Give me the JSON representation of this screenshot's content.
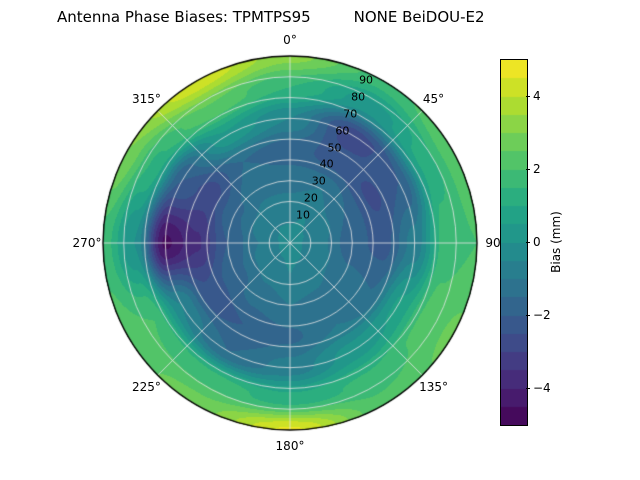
{
  "chart_data": {
    "type": "heatmap",
    "projection": "polar",
    "title": "Antenna Phase Biases: TPMTPS95         NONE BeiDOU-E2",
    "grid": true,
    "angular_ticks": [
      {
        "angle_deg": 0,
        "label": "0°"
      },
      {
        "angle_deg": 45,
        "label": "45°"
      },
      {
        "angle_deg": 90,
        "label": "90"
      },
      {
        "angle_deg": 135,
        "label": "135°"
      },
      {
        "angle_deg": 180,
        "label": "180°"
      },
      {
        "angle_deg": 225,
        "label": "225°"
      },
      {
        "angle_deg": 270,
        "label": "270°"
      },
      {
        "angle_deg": 315,
        "label": "315°"
      }
    ],
    "radial_ticks": [
      {
        "value": 10,
        "label": "10"
      },
      {
        "value": 20,
        "label": "20"
      },
      {
        "value": 30,
        "label": "30"
      },
      {
        "value": 40,
        "label": "40"
      },
      {
        "value": 50,
        "label": "50"
      },
      {
        "value": 60,
        "label": "60"
      },
      {
        "value": 70,
        "label": "70"
      },
      {
        "value": 80,
        "label": "80"
      },
      {
        "value": 90,
        "label": "90"
      }
    ],
    "radial_tick_angle_deg": 25,
    "radial_max": 90,
    "colorbar": {
      "label": "Bias (mm)",
      "min": -5,
      "max": 5,
      "level_step": 0.5,
      "ticks": [
        {
          "value": -4,
          "label": "−4"
        },
        {
          "value": -2,
          "label": "−2"
        },
        {
          "value": 0,
          "label": "0"
        },
        {
          "value": 2,
          "label": "2"
        },
        {
          "value": 4,
          "label": "4"
        }
      ]
    },
    "colormap": {
      "name": "viridis",
      "stops": [
        "#440154",
        "#482475",
        "#414487",
        "#355f8d",
        "#2a788e",
        "#21918c",
        "#22a884",
        "#44bf70",
        "#7ad151",
        "#bddf26",
        "#fde725"
      ]
    },
    "field": {
      "units": "mm",
      "azimuths_deg": [
        0,
        30,
        60,
        90,
        120,
        150,
        180,
        210,
        240,
        270,
        300,
        330
      ],
      "radii_deg": [
        0,
        15,
        30,
        45,
        60,
        75,
        90
      ],
      "bias_mm": [
        [
          -0.3,
          -0.3,
          -0.3,
          -0.3,
          -0.3,
          -0.3,
          -0.3,
          -0.3,
          -0.3,
          -0.3,
          -0.3,
          -0.3
        ],
        [
          -0.6,
          -0.5,
          -0.7,
          -0.9,
          -0.8,
          -0.6,
          -0.5,
          -0.7,
          -0.9,
          -1.0,
          -0.8,
          -0.6
        ],
        [
          -1.2,
          -1.0,
          -1.5,
          -1.8,
          -1.4,
          -1.1,
          -1.0,
          -1.3,
          -1.7,
          -2.0,
          -1.6,
          -1.2
        ],
        [
          -1.8,
          -2.2,
          -2.6,
          -2.2,
          -1.5,
          -1.0,
          -1.6,
          -2.0,
          -2.4,
          -3.6,
          -2.8,
          -1.5
        ],
        [
          -0.5,
          -2.8,
          -2.0,
          -0.8,
          0.6,
          0.2,
          -0.8,
          -1.5,
          -0.5,
          -4.6,
          -2.0,
          0.4
        ],
        [
          1.5,
          0.2,
          1.2,
          1.8,
          2.2,
          1.6,
          1.2,
          1.8,
          2.0,
          0.0,
          1.4,
          2.4
        ],
        [
          3.2,
          1.8,
          2.4,
          2.0,
          2.6,
          2.2,
          4.6,
          2.8,
          2.2,
          1.8,
          3.0,
          4.4
        ]
      ]
    }
  }
}
